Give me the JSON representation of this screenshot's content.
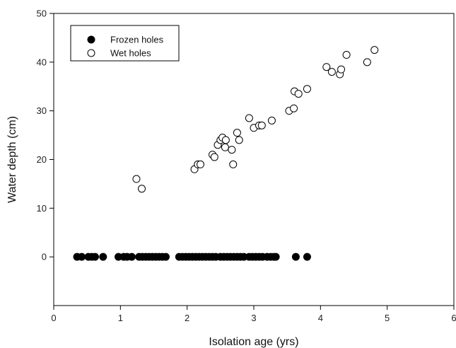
{
  "chart_data": {
    "type": "scatter",
    "title": "",
    "xlabel": "Isolation age (yrs)",
    "ylabel": "Water depth (cm)",
    "xlim": [
      0,
      6
    ],
    "ylim": [
      -10,
      50
    ],
    "x_ticks": [
      0,
      1,
      2,
      3,
      4,
      5,
      6
    ],
    "x_tick_labels": [
      "0",
      "1",
      "2",
      "3",
      "4",
      "5",
      "6"
    ],
    "y_ticks": [
      0,
      10,
      20,
      30,
      40,
      50
    ],
    "y_tick_labels": [
      "0",
      "10",
      "20",
      "30",
      "40",
      "50"
    ],
    "grid": false,
    "legend_position": "top-left",
    "series": [
      {
        "name": "Frozen holes",
        "marker": "filled-circle",
        "color": "#000000",
        "points": [
          [
            0.35,
            0
          ],
          [
            0.42,
            0
          ],
          [
            0.52,
            0
          ],
          [
            0.57,
            0
          ],
          [
            0.62,
            0
          ],
          [
            0.74,
            0
          ],
          [
            0.97,
            0
          ],
          [
            1.05,
            0
          ],
          [
            1.1,
            0
          ],
          [
            1.17,
            0
          ],
          [
            1.28,
            0
          ],
          [
            1.33,
            0
          ],
          [
            1.38,
            0
          ],
          [
            1.43,
            0
          ],
          [
            1.48,
            0
          ],
          [
            1.53,
            0
          ],
          [
            1.58,
            0
          ],
          [
            1.63,
            0
          ],
          [
            1.68,
            0
          ],
          [
            1.88,
            0
          ],
          [
            1.93,
            0
          ],
          [
            1.98,
            0
          ],
          [
            2.03,
            0
          ],
          [
            2.08,
            0
          ],
          [
            2.13,
            0
          ],
          [
            2.18,
            0
          ],
          [
            2.23,
            0
          ],
          [
            2.28,
            0
          ],
          [
            2.33,
            0
          ],
          [
            2.38,
            0
          ],
          [
            2.43,
            0
          ],
          [
            2.5,
            0
          ],
          [
            2.55,
            0
          ],
          [
            2.6,
            0
          ],
          [
            2.65,
            0
          ],
          [
            2.7,
            0
          ],
          [
            2.75,
            0
          ],
          [
            2.8,
            0
          ],
          [
            2.85,
            0
          ],
          [
            2.93,
            0
          ],
          [
            2.98,
            0
          ],
          [
            3.03,
            0
          ],
          [
            3.08,
            0
          ],
          [
            3.13,
            0
          ],
          [
            3.2,
            0
          ],
          [
            3.25,
            0
          ],
          [
            3.3,
            0
          ],
          [
            3.33,
            0
          ],
          [
            3.63,
            0
          ],
          [
            3.8,
            0
          ]
        ]
      },
      {
        "name": "Wet holes",
        "marker": "open-circle",
        "color": "#000000",
        "points": [
          [
            1.24,
            16
          ],
          [
            1.32,
            14
          ],
          [
            2.11,
            18
          ],
          [
            2.16,
            19
          ],
          [
            2.2,
            19
          ],
          [
            2.38,
            21
          ],
          [
            2.41,
            20.5
          ],
          [
            2.46,
            23
          ],
          [
            2.5,
            24
          ],
          [
            2.53,
            24.5
          ],
          [
            2.57,
            22.5
          ],
          [
            2.58,
            24
          ],
          [
            2.67,
            22
          ],
          [
            2.69,
            19
          ],
          [
            2.75,
            25.5
          ],
          [
            2.78,
            24
          ],
          [
            2.93,
            28.5
          ],
          [
            3.0,
            26.5
          ],
          [
            3.08,
            27
          ],
          [
            3.12,
            27
          ],
          [
            3.27,
            28
          ],
          [
            3.53,
            30
          ],
          [
            3.6,
            30.5
          ],
          [
            3.61,
            34
          ],
          [
            3.67,
            33.5
          ],
          [
            3.8,
            34.5
          ],
          [
            4.09,
            39
          ],
          [
            4.17,
            38
          ],
          [
            4.29,
            37.5
          ],
          [
            4.31,
            38.5
          ],
          [
            4.39,
            41.5
          ],
          [
            4.7,
            40
          ],
          [
            4.81,
            42.5
          ]
        ]
      }
    ]
  }
}
